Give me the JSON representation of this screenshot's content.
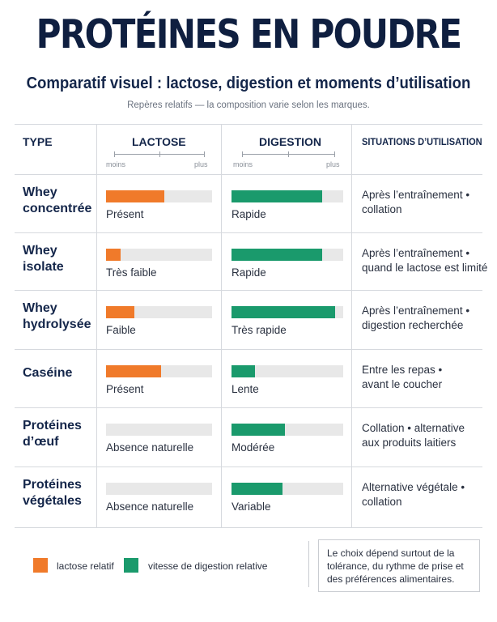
{
  "header": {
    "title": "PROTÉINES EN POUDRE",
    "subtitle": "Comparatif visuel : lactose, digestion et moments d’utilisation",
    "note": "Repères relatifs — la composition varie selon les marques."
  },
  "columns": {
    "type": "TYPE",
    "lactose": "LACTOSE",
    "digestion": "DIGESTION",
    "usage": "SITUATIONS D’UTILISATION",
    "scale_min": "moins",
    "scale_max": "plus"
  },
  "colors": {
    "lactose": "#f07a2a",
    "digestion": "#1a9a6c",
    "track": "#e8e8e8",
    "title": "#0f1f40"
  },
  "chart_data": {
    "type": "bar",
    "categories": [
      [
        "Whey",
        "concentrée"
      ],
      [
        "Whey",
        "isolate"
      ],
      [
        "Whey",
        "hydrolysée"
      ],
      [
        "Caséine"
      ],
      [
        "Protéines",
        "d’œuf"
      ],
      [
        "Protéines",
        "végétales"
      ]
    ],
    "scale_note": "relative level, 0 = moins, 1 = plus",
    "series": [
      {
        "name": "lactose relatif",
        "color": "#f07a2a",
        "values": [
          0.55,
          0.14,
          0.27,
          0.52,
          0.0,
          0.0
        ],
        "labels": [
          "Présent",
          "Très faible",
          "Faible",
          "Présent",
          "Absence naturelle",
          "Absence naturelle"
        ]
      },
      {
        "name": "vitesse de digestion relative",
        "color": "#1a9a6c",
        "values": [
          0.81,
          0.81,
          0.93,
          0.21,
          0.48,
          0.46
        ],
        "labels": [
          "Rapide",
          "Rapide",
          "Très rapide",
          "Lente",
          "Modérée",
          "Variable"
        ]
      }
    ],
    "usage": [
      [
        "Après l’entraînement •",
        "collation"
      ],
      [
        "Après l’entraînement •",
        "quand le lactose est limité"
      ],
      [
        "Après l’entraînement •",
        "digestion recherchée"
      ],
      [
        "Entre les repas •",
        "avant le coucher"
      ],
      [
        "Collation • alternative",
        "aux produits laitiers"
      ],
      [
        "Alternative végétale •",
        "collation"
      ]
    ],
    "ylim": [
      0,
      1
    ]
  },
  "legend": {
    "lactose": "lactose relatif",
    "digestion": "vitesse de digestion relative"
  },
  "footnote": "Le choix dépend surtout de la tolérance, du rythme de prise et des préférences alimentaires."
}
